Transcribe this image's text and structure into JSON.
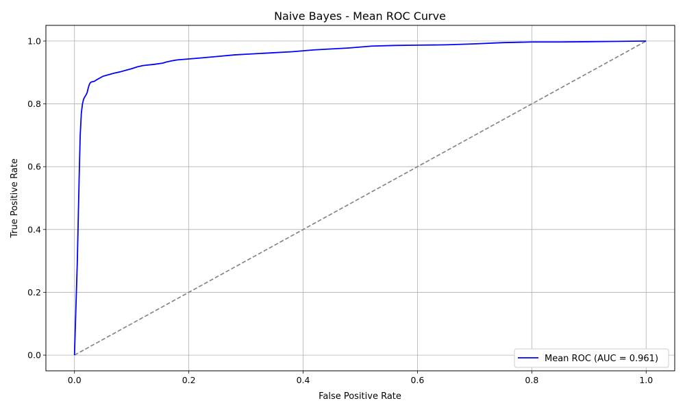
{
  "chart_data": {
    "type": "line",
    "title": "Naive Bayes - Mean ROC Curve",
    "xlabel": "False Positive Rate",
    "ylabel": "True Positive Rate",
    "xlim": [
      -0.05,
      1.05
    ],
    "ylim": [
      -0.05,
      1.05
    ],
    "xticks": [
      0.0,
      0.2,
      0.4,
      0.6,
      0.8,
      1.0
    ],
    "yticks": [
      0.0,
      0.2,
      0.4,
      0.6,
      0.8,
      1.0
    ],
    "xtick_labels": [
      "0.0",
      "0.2",
      "0.4",
      "0.6",
      "0.8",
      "1.0"
    ],
    "ytick_labels": [
      "0.0",
      "0.2",
      "0.4",
      "0.6",
      "0.8",
      "1.0"
    ],
    "grid": true,
    "legend_position": "lower-right",
    "series": [
      {
        "name": "Mean ROC (AUC = 0.961)",
        "color": "#0000ff",
        "style": "solid",
        "x": [
          0.0,
          0.005,
          0.008,
          0.01,
          0.012,
          0.014,
          0.016,
          0.018,
          0.02,
          0.022,
          0.024,
          0.026,
          0.028,
          0.03,
          0.035,
          0.04,
          0.045,
          0.05,
          0.06,
          0.07,
          0.08,
          0.09,
          0.1,
          0.11,
          0.12,
          0.14,
          0.155,
          0.16,
          0.17,
          0.18,
          0.2,
          0.22,
          0.25,
          0.28,
          0.3,
          0.34,
          0.38,
          0.4,
          0.42,
          0.45,
          0.48,
          0.5,
          0.52,
          0.56,
          0.6,
          0.65,
          0.7,
          0.75,
          0.8,
          0.85,
          0.9,
          0.95,
          1.0
        ],
        "y": [
          0.0,
          0.3,
          0.55,
          0.7,
          0.77,
          0.8,
          0.815,
          0.822,
          0.828,
          0.835,
          0.85,
          0.862,
          0.868,
          0.87,
          0.872,
          0.878,
          0.883,
          0.888,
          0.893,
          0.898,
          0.902,
          0.907,
          0.912,
          0.918,
          0.922,
          0.926,
          0.93,
          0.933,
          0.937,
          0.94,
          0.943,
          0.946,
          0.951,
          0.956,
          0.958,
          0.962,
          0.966,
          0.969,
          0.972,
          0.975,
          0.978,
          0.981,
          0.984,
          0.986,
          0.987,
          0.988,
          0.991,
          0.995,
          0.997,
          0.997,
          0.998,
          0.999,
          1.0
        ]
      },
      {
        "name": "",
        "color": "#808080",
        "style": "dashed",
        "x": [
          0.0,
          1.0
        ],
        "y": [
          0.0,
          1.0
        ]
      }
    ]
  }
}
